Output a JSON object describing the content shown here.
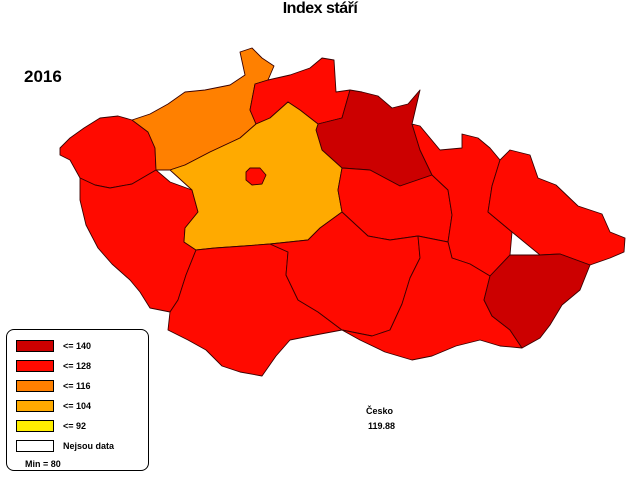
{
  "title": "Index stáří",
  "year": "2016",
  "country": {
    "name": "Česko",
    "value": "119.88"
  },
  "legend": {
    "items": [
      {
        "label": "<= 140",
        "color": "#cc0000"
      },
      {
        "label": "<= 128",
        "color": "#ff0a00"
      },
      {
        "label": "<= 116",
        "color": "#ff8000"
      },
      {
        "label": "<= 104",
        "color": "#ffaa00"
      },
      {
        "label": "<= 92",
        "color": "#ffee00"
      },
      {
        "label": "Nejsou data",
        "color": "#ffffff"
      }
    ],
    "min": "Min = 80"
  },
  "regions": {
    "karlovarsky": {
      "color": "#ff0a00"
    },
    "plzensky": {
      "color": "#ff0a00"
    },
    "ustecky": {
      "color": "#ff8000"
    },
    "liberecky": {
      "color": "#ff0a00"
    },
    "kralovehradecky": {
      "color": "#cc0000"
    },
    "stredocesky": {
      "color": "#ffaa00"
    },
    "praha": {
      "color": "#ff0a00"
    },
    "pardubicky": {
      "color": "#ff0a00"
    },
    "olomoucky": {
      "color": "#ff0a00"
    },
    "moravskoslezsky": {
      "color": "#ff0a00"
    },
    "jihocesky": {
      "color": "#ff0a00"
    },
    "vysocina": {
      "color": "#ff0a00"
    },
    "jihomoravsky": {
      "color": "#ff0a00"
    },
    "zlinsky": {
      "color": "#cc0000"
    }
  }
}
